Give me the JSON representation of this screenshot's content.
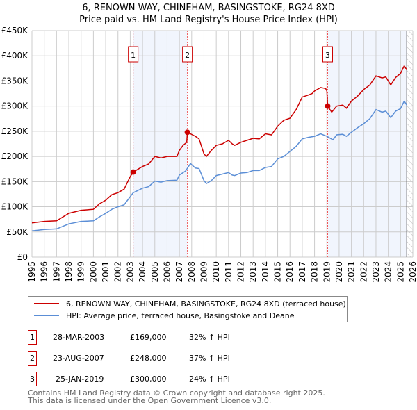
{
  "chart_data": {
    "type": "line",
    "title": "6, RENOWN WAY, CHINEHAM, BASINGSTOKE, RG24 8XD",
    "subtitle": "Price paid vs. HM Land Registry's House Price Index (HPI)",
    "xlim": [
      1995,
      2026
    ],
    "ylim": [
      0,
      450000
    ],
    "grid": true,
    "x_ticks": [
      "1995",
      "1996",
      "1997",
      "1998",
      "1999",
      "2000",
      "2001",
      "2002",
      "2003",
      "2004",
      "2005",
      "2006",
      "2007",
      "2008",
      "2009",
      "2010",
      "2011",
      "2012",
      "2013",
      "2014",
      "2015",
      "2016",
      "2017",
      "2018",
      "2019",
      "2020",
      "2021",
      "2022",
      "2023",
      "2024",
      "2025",
      "2026"
    ],
    "y_ticks": [
      {
        "v": 0,
        "l": "£0"
      },
      {
        "v": 50000,
        "l": "£50K"
      },
      {
        "v": 100000,
        "l": "£100K"
      },
      {
        "v": 150000,
        "l": "£150K"
      },
      {
        "v": 200000,
        "l": "£200K"
      },
      {
        "v": 250000,
        "l": "£250K"
      },
      {
        "v": 300000,
        "l": "£300K"
      },
      {
        "v": 350000,
        "l": "£350K"
      },
      {
        "v": 400000,
        "l": "£400K"
      },
      {
        "v": 450000,
        "l": "£450K"
      }
    ],
    "shaded_ranges": [
      [
        2003.24,
        2007.65
      ],
      [
        2019.07,
        2025.5
      ]
    ],
    "forecast_hatch_from": 2025.5,
    "series": [
      {
        "name": "6, RENOWN WAY, CHINEHAM, BASINGSTOKE, RG24 8XD (terraced house)",
        "color": "#cc0000",
        "x": [
          1995,
          1996,
          1997,
          1998,
          1999,
          2000,
          2000.5,
          2001,
          2001.5,
          2002,
          2002.5,
          2003,
          2003.24,
          2004,
          2004.5,
          2005,
          2005.5,
          2006,
          2006.8,
          2007,
          2007.3,
          2007.6,
          2007.65,
          2007.9,
          2008.3,
          2008.6,
          2009,
          2009.2,
          2009.6,
          2010,
          2010.5,
          2011,
          2011.3,
          2011.5,
          2012,
          2012.5,
          2013,
          2013.5,
          2014,
          2014.5,
          2015,
          2015.5,
          2016,
          2016.5,
          2017,
          2017.5,
          2017.8,
          2018,
          2018.5,
          2018.9,
          2019.0,
          2019.07,
          2019.4,
          2019.8,
          2020.3,
          2020.6,
          2021,
          2021.5,
          2022,
          2022.5,
          2023,
          2023.5,
          2023.8,
          2024.2,
          2024.6,
          2025,
          2025.3,
          2025.5
        ],
        "y": [
          68000,
          71000,
          72000,
          87000,
          93000,
          95000,
          106000,
          113000,
          124000,
          128000,
          135000,
          160000,
          169000,
          180000,
          185000,
          200000,
          197000,
          200000,
          200000,
          212000,
          222000,
          228000,
          248000,
          245000,
          240000,
          235000,
          205000,
          200000,
          212000,
          222000,
          225000,
          232000,
          225000,
          222000,
          228000,
          232000,
          236000,
          235000,
          245000,
          243000,
          260000,
          272000,
          276000,
          293000,
          318000,
          322000,
          325000,
          330000,
          337000,
          335000,
          330000,
          300000,
          288000,
          300000,
          302000,
          296000,
          310000,
          320000,
          333000,
          342000,
          360000,
          356000,
          358000,
          342000,
          357000,
          365000,
          380000,
          372000
        ]
      },
      {
        "name": "HPI: Average price, terraced house, Basingstoke and Deane",
        "color": "#5b8ed6",
        "x": [
          1995,
          1996,
          1997,
          1998,
          1999,
          2000,
          2000.5,
          2001,
          2001.5,
          2002,
          2002.5,
          2003.24,
          2004,
          2004.5,
          2005,
          2005.5,
          2006,
          2006.8,
          2007,
          2007.5,
          2007.9,
          2008.3,
          2008.6,
          2009,
          2009.2,
          2009.6,
          2010,
          2010.5,
          2011,
          2011.3,
          2011.5,
          2012,
          2012.5,
          2013,
          2013.5,
          2014,
          2014.5,
          2015,
          2015.5,
          2016,
          2016.5,
          2017,
          2017.5,
          2018,
          2018.5,
          2019,
          2019.5,
          2019.8,
          2020.3,
          2020.6,
          2021,
          2021.5,
          2022,
          2022.5,
          2023,
          2023.5,
          2023.8,
          2024.2,
          2024.6,
          2025,
          2025.3,
          2025.5
        ],
        "y": [
          52000,
          55000,
          56000,
          66000,
          71000,
          72000,
          80000,
          87000,
          95000,
          100000,
          104000,
          128000,
          137000,
          140000,
          151000,
          149000,
          152000,
          153000,
          163000,
          171000,
          186000,
          177000,
          176000,
          152000,
          146000,
          152000,
          162000,
          165000,
          168000,
          163000,
          162000,
          167000,
          168000,
          172000,
          172000,
          178000,
          180000,
          195000,
          200000,
          210000,
          220000,
          235000,
          238000,
          240000,
          245000,
          240000,
          233000,
          243000,
          244000,
          240000,
          248000,
          257000,
          265000,
          275000,
          293000,
          288000,
          290000,
          277000,
          290000,
          295000,
          310000,
          302000
        ]
      }
    ],
    "sales": [
      {
        "label": "1",
        "date": "28-MAR-2003",
        "x": 2003.24,
        "price": "£169,000",
        "value": 169000,
        "hpi": "32% ↑ HPI"
      },
      {
        "label": "2",
        "date": "23-AUG-2007",
        "x": 2007.65,
        "price": "£248,000",
        "value": 248000,
        "hpi": "37% ↑ HPI"
      },
      {
        "label": "3",
        "date": "25-JAN-2019",
        "x": 2019.07,
        "price": "£300,000",
        "value": 300000,
        "hpi": "24% ↑ HPI"
      }
    ]
  },
  "footer": {
    "line1": "Contains HM Land Registry data © Crown copyright and database right 2025.",
    "line2": "This data is licensed under the Open Government Licence v3.0."
  }
}
